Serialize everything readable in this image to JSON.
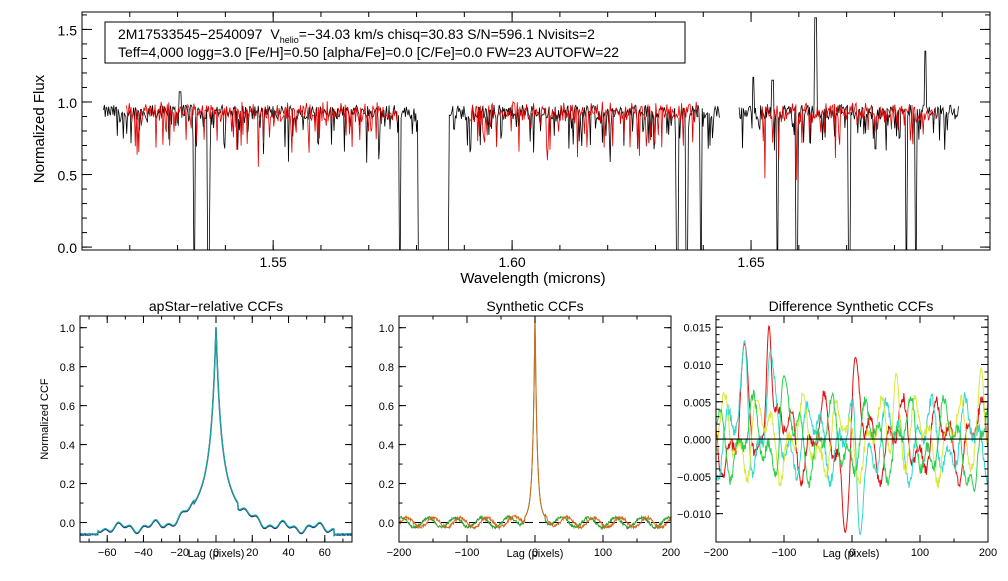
{
  "colors": {
    "background": "#ffffff",
    "axis": "#000000",
    "observed": "#000000",
    "model": "#e00000",
    "ccf_dark": "#1a237e",
    "ccf_teal": "#1aa89a",
    "orange": "#d2691e",
    "green": "#2e9b2e",
    "cyan": "#30d9c8",
    "yellow": "#d8e83a",
    "red": "#e01010"
  },
  "info_box": {
    "line1_id": "2M17533545−2540097",
    "vhelio_label": "V",
    "vhelio_sub": "helio",
    "line1_rest": "=−34.03 km/s  chisq=30.83  S/N=596.1  Nvisits=2",
    "line2": "Teff=4,000 logg=3.0 [Fe/H]=0.50 [alpha/Fe]=0.0 [C/Fe]=0.0 FW=23 AUTOFW=22"
  },
  "chart_data": [
    {
      "id": "spectrum",
      "type": "line",
      "title": "",
      "xlabel": "Wavelength (microns)",
      "ylabel": "Normalized Flux",
      "xlim": [
        1.51,
        1.7
      ],
      "ylim": [
        -0.02,
        1.62
      ],
      "xticks": [
        1.55,
        1.6,
        1.65
      ],
      "xtick_labels": [
        "1.55",
        "1.60",
        "1.65"
      ],
      "yticks": [
        0.0,
        0.5,
        1.0,
        1.5
      ],
      "ytick_labels": [
        "0.0",
        "0.5",
        "1.0",
        "1.5"
      ],
      "chip_ranges": [
        [
          1.5145,
          1.5805
        ],
        [
          1.5865,
          1.6435
        ],
        [
          1.6475,
          1.6935
        ]
      ],
      "continuum": 0.93,
      "series": [
        {
          "name": "Observed spectrum",
          "color": "#000000",
          "deep_lines": [
            1.5335,
            1.5365,
            1.5765,
            1.5805,
            1.5865,
            1.6345,
            1.6365,
            1.6395,
            1.6555,
            1.6595,
            1.6705,
            1.6825,
            1.6845
          ]
        },
        {
          "name": "Synthetic model",
          "color": "#e00000",
          "deep_lines": []
        }
      ],
      "features": [
        {
          "x": 1.5305,
          "y": 1.07,
          "series": "Observed spectrum"
        },
        {
          "x": 1.6635,
          "y": 1.58,
          "series": "Observed spectrum"
        },
        {
          "x": 1.6505,
          "y": 1.17,
          "series": "Observed spectrum"
        },
        {
          "x": 1.6545,
          "y": 1.15,
          "series": "Observed spectrum"
        },
        {
          "x": 1.6865,
          "y": 1.35,
          "series": "Observed spectrum"
        }
      ]
    },
    {
      "id": "apstar_ccf",
      "type": "line",
      "title": "apStar−relative CCFs",
      "xlabel": "Lag (pixels)",
      "ylabel": "Normalized CCF",
      "xlim": [
        -75,
        75
      ],
      "ylim": [
        -0.1,
        1.06
      ],
      "xticks": [
        -60,
        -40,
        -20,
        0,
        20,
        40,
        60
      ],
      "xtick_labels": [
        "−60",
        "−40",
        "−20",
        "0",
        "20",
        "40",
        "60"
      ],
      "yticks": [
        0.0,
        0.2,
        0.4,
        0.6,
        0.8,
        1.0
      ],
      "ytick_labels": [
        "0.0",
        "0.2",
        "0.4",
        "0.6",
        "0.8",
        "1.0"
      ],
      "peak_lag": 0,
      "peak_value": 1.0,
      "wing_level": -0.05,
      "series": [
        {
          "name": "visit CCF 1",
          "color": "#1a237e"
        },
        {
          "name": "visit CCF 2",
          "color": "#1aa89a"
        }
      ]
    },
    {
      "id": "synthetic_ccf",
      "type": "line",
      "title": "Synthetic CCFs",
      "xlabel": "Lag (pixels)",
      "ylabel": "",
      "xlim": [
        -200,
        200
      ],
      "ylim": [
        -0.1,
        1.06
      ],
      "xticks": [
        -200,
        -100,
        0,
        100,
        200
      ],
      "xtick_labels": [
        "−200",
        "−100",
        "0",
        "100",
        "200"
      ],
      "yticks": [
        0.0,
        0.2,
        0.4,
        0.6,
        0.8,
        1.0
      ],
      "ytick_labels": [
        "0.0",
        "0.2",
        "0.4",
        "0.6",
        "0.8",
        "1.0"
      ],
      "peak_lag": 0,
      "peak_value": 1.0,
      "zero_line": "dashed",
      "series": [
        {
          "name": "synthetic CCF 1",
          "color": "#d2691e"
        },
        {
          "name": "synthetic CCF 2",
          "color": "#2e9b2e"
        }
      ]
    },
    {
      "id": "difference_ccf",
      "type": "line",
      "title": "Difference Synthetic CCFs",
      "xlabel": "Lag (pixels)",
      "ylabel": "",
      "xlim": [
        -200,
        200
      ],
      "ylim": [
        -0.0138,
        0.0165
      ],
      "xticks": [
        -200,
        -100,
        0,
        100,
        200
      ],
      "xtick_labels": [
        "−200",
        "−100",
        "0",
        "100",
        "200"
      ],
      "yticks": [
        -0.01,
        -0.005,
        0.0,
        0.005,
        0.01,
        0.015
      ],
      "ytick_labels": [
        "−0.010",
        "−0.005",
        "0.000",
        "0.005",
        "0.010",
        "0.015"
      ],
      "zero_line": "solid",
      "series": [
        {
          "name": "difference 1",
          "color": "#e01010",
          "peaks": [
            {
              "x": -158,
              "y": 0.0128
            },
            {
              "x": -122,
              "y": 0.0152
            },
            {
              "x": 5,
              "y": 0.011
            },
            {
              "x": -10,
              "y": -0.0125
            }
          ]
        },
        {
          "name": "difference 2",
          "color": "#30d9c8",
          "peaks": [
            {
              "x": -158,
              "y": 0.0132
            },
            {
              "x": -120,
              "y": 0.0118
            },
            {
              "x": 12,
              "y": -0.0128
            }
          ]
        },
        {
          "name": "difference 3",
          "color": "#d8e83a",
          "peaks": [
            {
              "x": -140,
              "y": 0.0052
            },
            {
              "x": 65,
              "y": 0.0088
            },
            {
              "x": 190,
              "y": 0.0095
            }
          ]
        },
        {
          "name": "difference 4",
          "color": "#2ad04a",
          "peaks": [
            {
              "x": -100,
              "y": 0.0085
            },
            {
              "x": 180,
              "y": -0.007
            }
          ]
        }
      ]
    }
  ]
}
